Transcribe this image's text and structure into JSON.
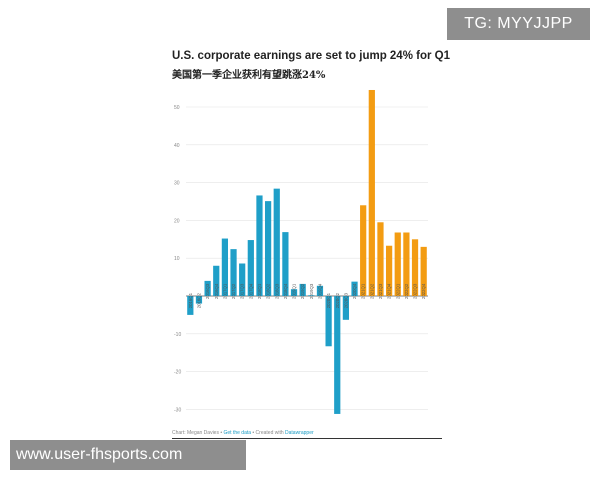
{
  "watermarks": {
    "top": "TG: MYYJJPP",
    "bottom": "www.user-fhsports.com"
  },
  "chart_data": {
    "type": "bar",
    "title": "U.S. corporate earnings are set to jump 24% for Q1",
    "subtitle": "美国第一季企业获利有望跳涨24%",
    "xlabel": "",
    "ylabel": "",
    "ylim": [
      -33,
      58
    ],
    "yticks": [
      -30,
      -20,
      -10,
      10,
      20,
      30,
      40,
      50
    ],
    "grid": true,
    "categories": [
      "2016Q1",
      "2016Q2",
      "2016Q3",
      "2016Q4",
      "2017Q1",
      "2017Q2",
      "2017Q3",
      "2017Q4",
      "2018Q1",
      "2018Q2",
      "2018Q3",
      "2018Q4",
      "2019Q1",
      "2019Q2",
      "2019Q3",
      "2019Q4",
      "2020Q1",
      "2020Q2",
      "2020Q3",
      "2020Q4",
      "2021Q1",
      "2021Q2",
      "2021Q3",
      "2021Q4",
      "2022Q1",
      "2022Q2",
      "2022Q3",
      "2022Q4"
    ],
    "values": [
      -5,
      -2,
      4,
      8,
      15.2,
      12.4,
      8.6,
      14.8,
      26.6,
      25.1,
      28.4,
      16.9,
      1.8,
      3.2,
      0.2,
      2.7,
      -13.3,
      -31.2,
      -6.3,
      3.8,
      24,
      54.5,
      19.5,
      13.3,
      16.8,
      16.8,
      15,
      13
    ],
    "actual_color": "#1f9fc8",
    "estimate_color": "#f39c12",
    "estimate_from_index": 20
  },
  "footer": {
    "credit": "Chart: Megan Davies • ",
    "data_link": "Get the data",
    "sep": " • Created with ",
    "tool": "Datawrapper"
  }
}
